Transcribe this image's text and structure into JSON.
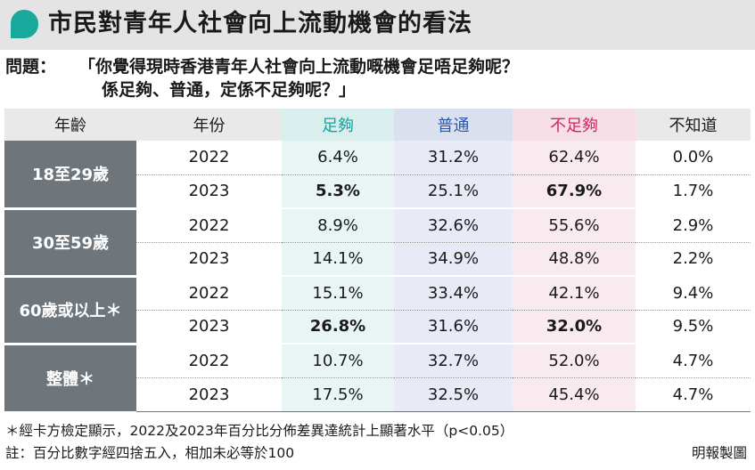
{
  "title": "市民對青年人社會向上流動機會的看法",
  "question": {
    "label": "問題：",
    "line1": "「你覺得現時香港青年人社會向上流動嘅機會足唔足夠呢？",
    "line2": "係足夠、普通，定係不足夠呢？」"
  },
  "table": {
    "headers": {
      "age": "年齡",
      "year": "年份",
      "enough": "足夠",
      "normal": "普通",
      "not_enough": "不足夠",
      "dont_know": "不知道"
    },
    "groups": [
      {
        "age": "18至29歲",
        "rows": [
          {
            "year": "2022",
            "enough": "6.4%",
            "normal": "31.2%",
            "not_enough": "62.4%",
            "dont_know": "0.0%"
          },
          {
            "year": "2023",
            "enough": "5.3%",
            "normal": "25.1%",
            "not_enough": "67.9%",
            "dont_know": "1.7%"
          }
        ]
      },
      {
        "age": "30至59歲",
        "rows": [
          {
            "year": "2022",
            "enough": "8.9%",
            "normal": "32.6%",
            "not_enough": "55.6%",
            "dont_know": "2.9%"
          },
          {
            "year": "2023",
            "enough": "14.1%",
            "normal": "34.9%",
            "not_enough": "48.8%",
            "dont_know": "2.2%"
          }
        ]
      },
      {
        "age": "60歲或以上＊",
        "rows": [
          {
            "year": "2022",
            "enough": "15.1%",
            "normal": "33.4%",
            "not_enough": "42.1%",
            "dont_know": "9.4%"
          },
          {
            "year": "2023",
            "enough": "26.8%",
            "normal": "31.6%",
            "not_enough": "32.0%",
            "dont_know": "9.5%"
          }
        ]
      },
      {
        "age": "整體＊",
        "rows": [
          {
            "year": "2022",
            "enough": "10.7%",
            "normal": "32.7%",
            "not_enough": "52.0%",
            "dont_know": "4.7%"
          },
          {
            "year": "2023",
            "enough": "17.5%",
            "normal": "32.5%",
            "not_enough": "45.4%",
            "dont_know": "4.7%"
          }
        ]
      }
    ]
  },
  "notes": {
    "line1": "＊經卡方檢定顯示，2022及2023年百分比分佈差異達統計上顯著水平（p<0.05）",
    "line2": "註：百分比數字經四捨五入，相加未必等於100",
    "credit": "明報製圖"
  },
  "colors": {
    "enough": "#17a0a0",
    "normal": "#2e57a7",
    "not_enough": "#d3245c",
    "age_cell": "#6f767b",
    "title_bar": "#e4e4e4",
    "title_icon": "#18a99c"
  }
}
